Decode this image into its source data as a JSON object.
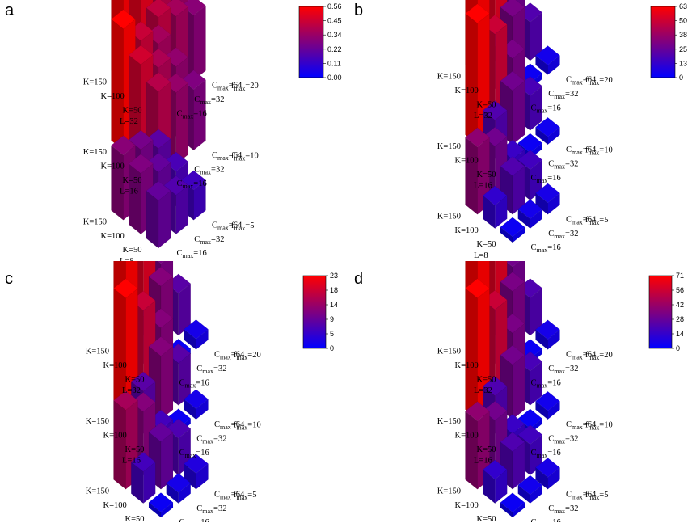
{
  "figure": {
    "panels": [
      {
        "letter": "a",
        "colorbar": [
          "0.56",
          "0.45",
          "0.34",
          "0.22",
          "0.11",
          "0.00"
        ],
        "color_range": [
          0,
          0.56
        ]
      },
      {
        "letter": "b",
        "colorbar": [
          "63",
          "50",
          "38",
          "25",
          "13",
          "0"
        ],
        "color_range": [
          0,
          63
        ]
      },
      {
        "letter": "c",
        "colorbar": [
          "23",
          "18",
          "14",
          "9",
          "5",
          "0"
        ],
        "color_range": [
          0,
          23
        ]
      },
      {
        "letter": "d",
        "colorbar": [
          "71",
          "56",
          "42",
          "28",
          "14",
          "0"
        ],
        "color_range": [
          0,
          71
        ]
      }
    ],
    "colormap": {
      "low": "#0000ff",
      "high": "#ff0000"
    }
  },
  "labels": {
    "groups": [
      {
        "L": "L=8",
        "f": "f",
        "f_sub": "max",
        "f_val": "=5",
        "K": [
          "K=150",
          "K=100",
          "K=50"
        ]
      },
      {
        "L": "L=16",
        "f": "f",
        "f_sub": "max",
        "f_val": "=10",
        "K": [
          "K=150",
          "K=100",
          "K=50"
        ]
      },
      {
        "L": "L=32",
        "f": "f",
        "f_sub": "max",
        "f_val": "=20",
        "K": [
          "K=150",
          "K=100",
          "K=50"
        ]
      }
    ],
    "C": {
      "main": "C",
      "sub": "max",
      "vals": [
        "=16",
        "=32",
        "=64"
      ]
    }
  },
  "chart_data": [
    {
      "type": "bar3d",
      "panel": "a",
      "groups": [
        "L=8, fmax=5",
        "L=16, fmax=10",
        "L=32, fmax=20"
      ],
      "rows": [
        "K=50",
        "K=100",
        "K=150"
      ],
      "cols": [
        "Cmax=16",
        "Cmax=32",
        "Cmax=64"
      ],
      "values": [
        [
          [
            0.22,
            0.18,
            0.14
          ],
          [
            0.28,
            0.22,
            0.16
          ],
          [
            0.3,
            0.26,
            0.2
          ]
        ],
        [
          [
            0.4,
            0.33,
            0.28
          ],
          [
            0.46,
            0.38,
            0.32
          ],
          [
            0.56,
            0.44,
            0.36
          ]
        ],
        [
          [
            0.42,
            0.36,
            0.3
          ],
          [
            0.5,
            0.4,
            0.34
          ],
          [
            0.55,
            0.46,
            0.38
          ]
        ]
      ],
      "zlim": [
        0,
        0.56
      ]
    },
    {
      "type": "bar3d",
      "panel": "b",
      "groups": [
        "L=8, fmax=5",
        "L=16, fmax=10",
        "L=32, fmax=20"
      ],
      "rows": [
        "K=50",
        "K=100",
        "K=150"
      ],
      "cols": [
        "Cmax=16",
        "Cmax=32",
        "Cmax=64"
      ],
      "values": [
        [
          [
            3,
            5,
            6
          ],
          [
            12,
            20,
            16
          ],
          [
            35,
            28,
            14
          ]
        ],
        [
          [
            2,
            3,
            4
          ],
          [
            20,
            28,
            18
          ],
          [
            63,
            50,
            30
          ]
        ],
        [
          [
            2,
            3,
            5
          ],
          [
            22,
            30,
            20
          ],
          [
            63,
            55,
            28
          ]
        ]
      ],
      "zlim": [
        0,
        63
      ]
    },
    {
      "type": "bar3d",
      "panel": "c",
      "groups": [
        "L=8, fmax=5",
        "L=16, fmax=10",
        "L=32, fmax=20"
      ],
      "rows": [
        "K=50",
        "K=100",
        "K=150"
      ],
      "cols": [
        "Cmax=16",
        "Cmax=32",
        "Cmax=64"
      ],
      "values": [
        [
          [
            1,
            2,
            3
          ],
          [
            6,
            9,
            7
          ],
          [
            15,
            12,
            6
          ]
        ],
        [
          [
            1,
            1,
            2
          ],
          [
            8,
            12,
            8
          ],
          [
            23,
            18,
            12
          ]
        ],
        [
          [
            1,
            1,
            2
          ],
          [
            9,
            12,
            8
          ],
          [
            23,
            20,
            11
          ]
        ]
      ],
      "zlim": [
        0,
        23
      ]
    },
    {
      "type": "bar3d",
      "panel": "d",
      "groups": [
        "L=8, fmax=5",
        "L=16, fmax=10",
        "L=32, fmax=20"
      ],
      "rows": [
        "K=50",
        "K=100",
        "K=150"
      ],
      "cols": [
        "Cmax=16",
        "Cmax=32",
        "Cmax=64"
      ],
      "values": [
        [
          [
            3,
            5,
            7
          ],
          [
            14,
            22,
            18
          ],
          [
            40,
            32,
            16
          ]
        ],
        [
          [
            2,
            3,
            5
          ],
          [
            22,
            32,
            20
          ],
          [
            71,
            56,
            34
          ]
        ],
        [
          [
            2,
            3,
            6
          ],
          [
            25,
            34,
            22
          ],
          [
            71,
            62,
            32
          ]
        ]
      ],
      "zlim": [
        0,
        71
      ]
    }
  ]
}
